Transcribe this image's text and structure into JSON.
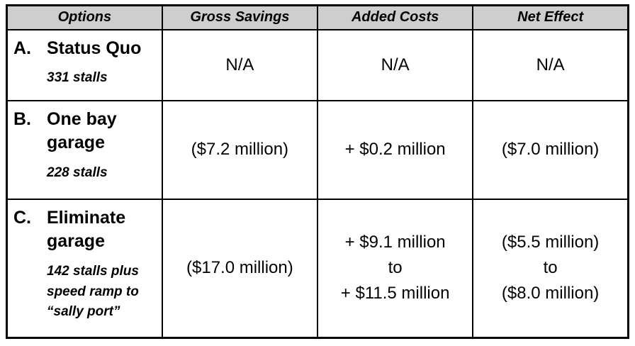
{
  "table": {
    "colors": {
      "header_bg": "#cecece",
      "border": "#000000"
    },
    "headers": [
      "Options",
      "Gross Savings",
      "Added Costs",
      "Net Effect"
    ],
    "rows": [
      {
        "letter": "A.",
        "title": "Status Quo",
        "note": "331 stalls",
        "gross": "N/A",
        "added": "N/A",
        "net": "N/A"
      },
      {
        "letter": "B.",
        "title": "One bay garage",
        "note": "228 stalls",
        "gross": "($7.2 million)",
        "added": "+ $0.2 million",
        "net": "($7.0 million)"
      },
      {
        "letter": "C.",
        "title": "Eliminate garage",
        "note": "142 stalls plus\nspeed ramp to\n“sally port”",
        "gross": "($17.0 million)",
        "added": "+ $9.1 million\nto\n+ $11.5 million",
        "net": "($5.5 million)\nto\n($8.0 million)"
      }
    ]
  }
}
